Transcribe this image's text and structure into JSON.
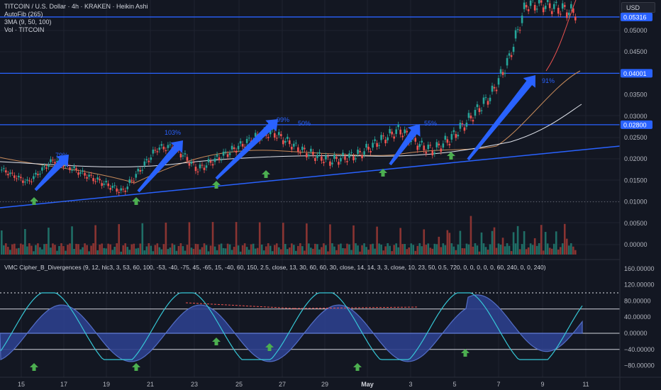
{
  "header": {
    "title": "TITCOIN / U.S. Dollar · 4h · KRAKEN · Heikin Ashi",
    "indicators": [
      "AutoFib (265)",
      "3MA (9, 50, 100)",
      "Vol · TITCOIN"
    ],
    "currency_button": "USD"
  },
  "price_axis": {
    "ticks": [
      "0.05000",
      "0.04500",
      "0.03500",
      "0.03000",
      "0.02500",
      "0.02000",
      "0.01500",
      "0.01000",
      "0.00500",
      "0.00000"
    ],
    "levels": [
      {
        "label": "0.05316",
        "value": 0.05316
      },
      {
        "label": "0.04001",
        "value": 0.04001
      },
      {
        "label": "0.02800",
        "value": 0.028
      }
    ],
    "dotted_level": 0.01
  },
  "annotations": [
    {
      "text": "79%"
    },
    {
      "text": "103%"
    },
    {
      "text": "99%"
    },
    {
      "text": "50%"
    },
    {
      "text": "55%"
    },
    {
      "text": "91%"
    }
  ],
  "oscillator": {
    "title": "VMC Cipher_B_Divergences (9, 12, hlc3, 3, 53, 60, 100, -53, -40, -75, 45, -65, 15, -40, 60, 150, 2.5, close, 13, 30, 60, 60, 30, close, 14, 14, 3, 3, close, 10, 23, 50, 0.5, 720, 0, 0, 0, 0, 0, 60, 240, 0, 0, 240)",
    "ticks": [
      "160.00000",
      "120.00000",
      "80.00000",
      "40.00000",
      "0.00000",
      "−40.00000",
      "−80.00000"
    ]
  },
  "time_axis": {
    "labels": [
      "15",
      "17",
      "19",
      "21",
      "23",
      "25",
      "27",
      "29",
      "May",
      "3",
      "5",
      "7",
      "9",
      "11"
    ]
  },
  "colors": {
    "background": "#131722",
    "up": "#26a69a",
    "down": "#ef5350",
    "level_line": "#2962ff",
    "arrow": "#2962ff",
    "signal": "#4caf50",
    "wave": "#3d5ab8",
    "wave_line": "#36c7d6"
  }
}
